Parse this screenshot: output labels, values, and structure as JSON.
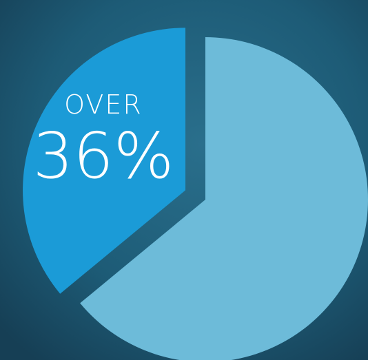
{
  "chart_data": {
    "type": "pie",
    "values": [
      36,
      64
    ],
    "value_labels": [
      "36%",
      null
    ],
    "annotation": "OVER",
    "colors": [
      "#1b9bd7",
      "#6dbbd9"
    ]
  }
}
